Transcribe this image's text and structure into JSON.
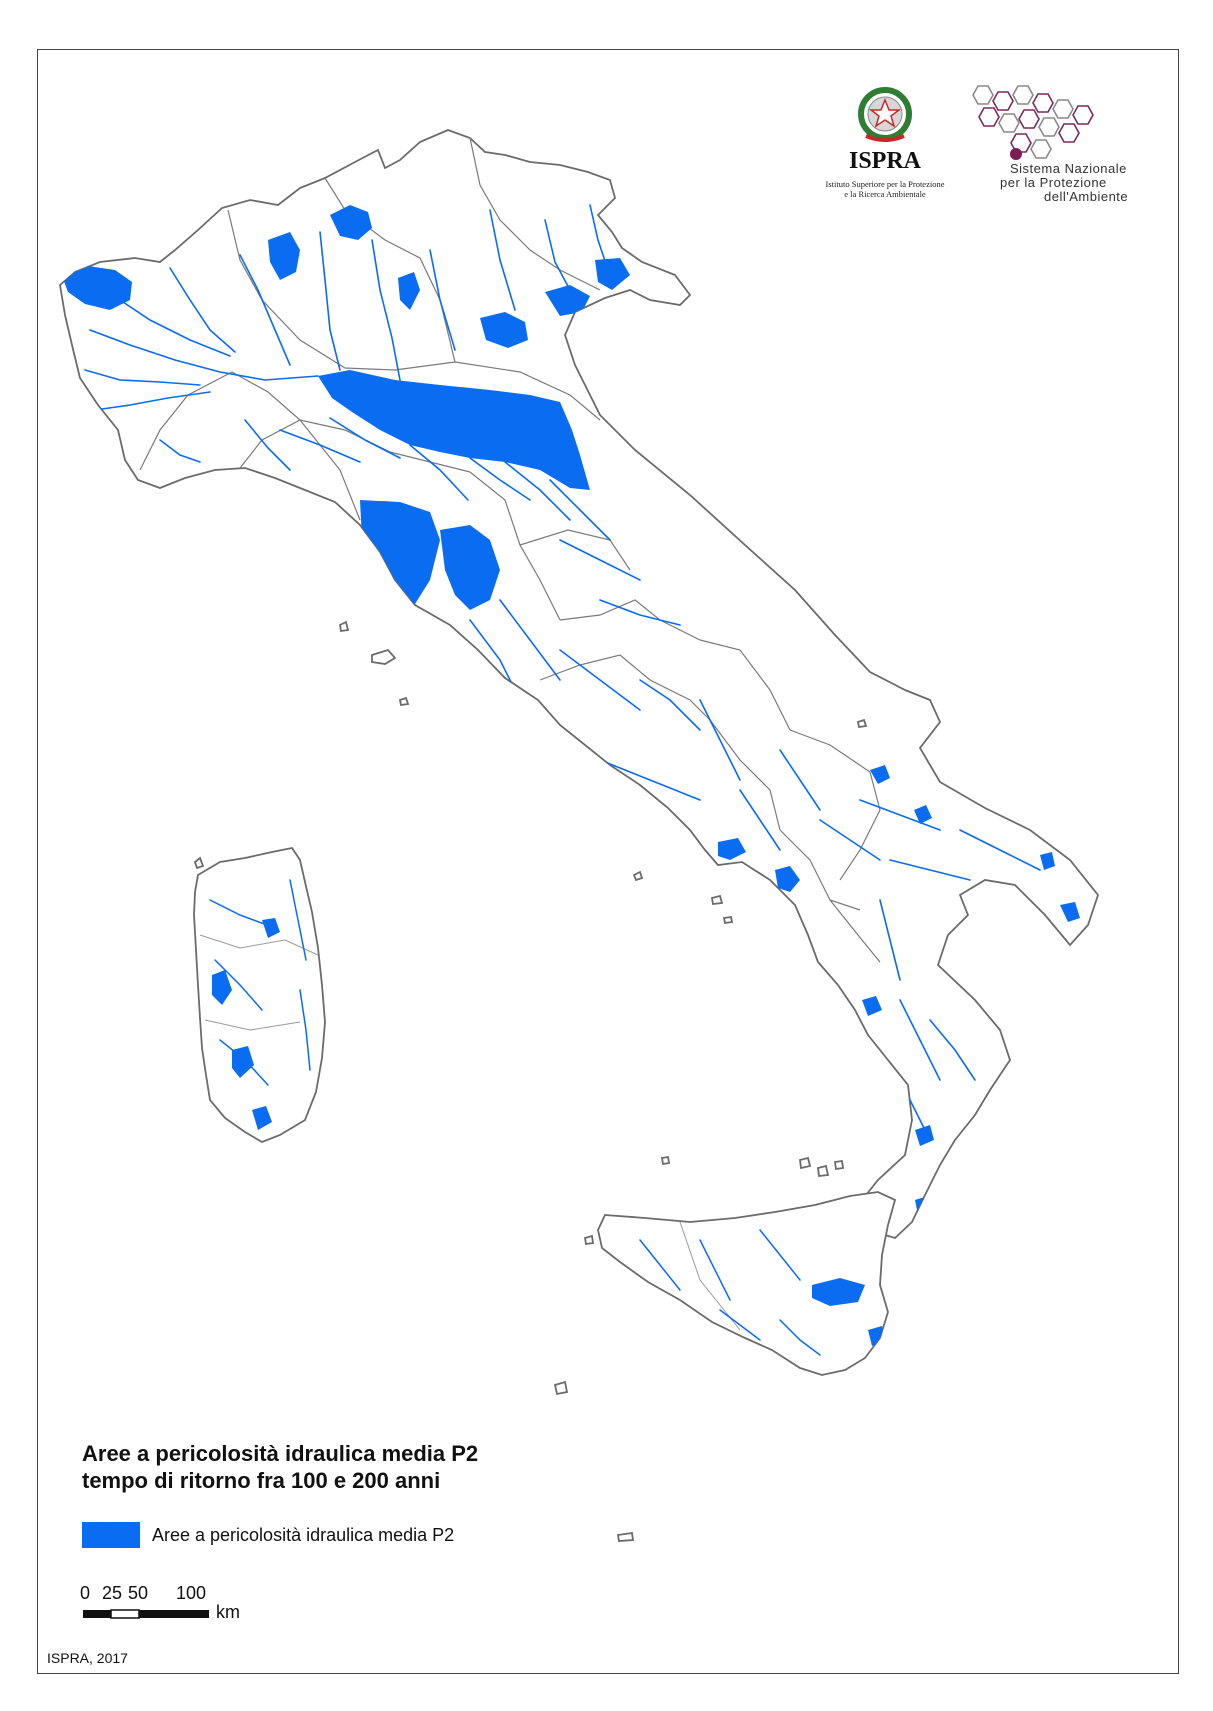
{
  "map": {
    "title_line1": "Aree a pericolosità idraulica media P2",
    "title_line2": "tempo di ritorno fra 100 e 200 anni",
    "legend": {
      "label": "Aree a pericolosità idraulica media P2",
      "color": "#0a6cf0"
    },
    "scale_bar": {
      "ticks": [
        "0",
        "25",
        "50",
        "100"
      ],
      "unit": "km"
    },
    "credit": "ISPRA, 2017",
    "colors": {
      "hazard": "#0a6cf0",
      "boundary": "#6b6b6b",
      "land": "#ffffff"
    }
  },
  "logos": {
    "ispra": {
      "name": "ISPRA",
      "subtitle_line1": "Istituto Superiore per la Protezione",
      "subtitle_line2": "e la Ricerca Ambientale"
    },
    "snpa": {
      "line1": "Sistema Nazionale",
      "line2": "per la Protezione",
      "line3": "dell'Ambiente"
    }
  }
}
